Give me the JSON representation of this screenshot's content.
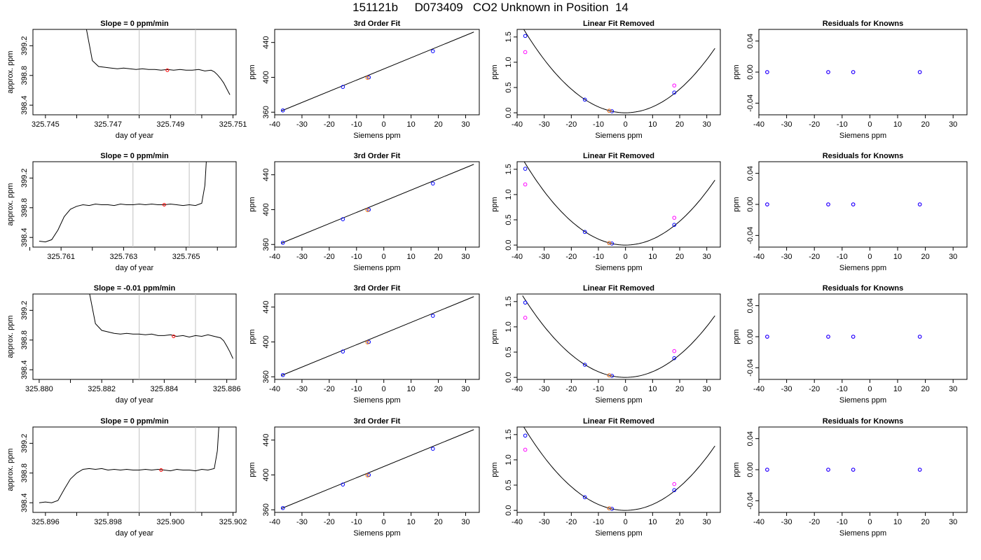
{
  "figure": {
    "title": "151121b     D073409   CO2 Unknown in Position  14"
  },
  "colors": {
    "axis": "#000000",
    "trace": "#000000",
    "fit_line": "#000000",
    "window_marker": "#c0c0c0",
    "mean_point": "#ff0000",
    "known_blue": "#0000ff",
    "known_magenta": "#ff00ff",
    "unknown_orange": "#ff7f00"
  },
  "chart_data": [
    {
      "type": "line",
      "panel": "trace",
      "title": "Slope =  0  ppm/min",
      "xlabel": "day of year",
      "ylabel": "approx. ppm",
      "xlim": [
        325.7446,
        325.7511
      ],
      "ylim": [
        398.27,
        399.42
      ],
      "xticks": [
        325.745,
        325.746,
        325.747,
        325.748,
        325.749,
        325.75,
        325.751
      ],
      "xtick_labels": [
        "325.745",
        "",
        "325.747",
        "",
        "325.749",
        "",
        "325.751"
      ],
      "yticks": [
        398.4,
        398.8,
        399.2
      ],
      "ytick_labels": [
        "398.4",
        "398.8",
        "399.2"
      ],
      "vlines": [
        325.748,
        325.7498
      ],
      "x": [
        325.7463,
        325.7465,
        325.7467,
        325.7469,
        325.7471,
        325.7473,
        325.7475,
        325.7477,
        325.7479,
        325.7481,
        325.7483,
        325.7485,
        325.7487,
        325.7489,
        325.7491,
        325.7493,
        325.7495,
        325.7497,
        325.7499,
        325.7501,
        325.7503,
        325.7504,
        325.7505,
        325.7506,
        325.7507,
        325.7508,
        325.7509
      ],
      "y": [
        399.45,
        399.0,
        398.92,
        398.91,
        398.9,
        398.89,
        398.9,
        398.89,
        398.88,
        398.89,
        398.88,
        398.88,
        398.87,
        398.88,
        398.87,
        398.88,
        398.87,
        398.87,
        398.88,
        398.86,
        398.87,
        398.85,
        398.81,
        398.76,
        398.7,
        398.62,
        398.54
      ],
      "mean": {
        "x": 325.7489,
        "y": 398.87
      }
    },
    {
      "type": "scatter",
      "panel": "fit",
      "title": "3rd Order Fit",
      "xlabel": "Siemens ppm",
      "ylabel": "ppm",
      "xlim": [
        -40,
        35
      ],
      "ylim": [
        357,
        455
      ],
      "xticks": [
        -40,
        -30,
        -20,
        -10,
        0,
        10,
        20,
        30
      ],
      "yticks": [
        360,
        400,
        440
      ],
      "line": [
        [
          -37.5,
          361.5
        ],
        [
          33,
          452
        ]
      ],
      "points_blue": [
        [
          -37,
          362
        ],
        [
          -15,
          389
        ],
        [
          -5.5,
          400
        ],
        [
          18,
          430
        ]
      ],
      "points_orange": [
        [
          -6,
          399.5
        ]
      ]
    },
    {
      "type": "scatter",
      "panel": "resid_curve",
      "title": "Linear Fit Removed",
      "xlabel": "Siemens ppm",
      "ylabel": "ppm",
      "xlim": [
        -40,
        35
      ],
      "ylim": [
        -0.04,
        1.65
      ],
      "xticks": [
        -40,
        -30,
        -20,
        -10,
        0,
        10,
        20,
        30
      ],
      "yticks": [
        0.0,
        0.5,
        1.0,
        1.5
      ],
      "ytick_labels": [
        "0.0",
        "0.5",
        "1.0",
        "1.5"
      ],
      "curve_a": 0.00117,
      "points_blue": [
        [
          -37,
          1.52
        ],
        [
          -15,
          0.26
        ],
        [
          -6,
          0.04
        ],
        [
          -5,
          0.03
        ],
        [
          18,
          0.4
        ]
      ],
      "points_magenta": [
        [
          -37,
          1.2
        ],
        [
          18,
          0.54
        ]
      ],
      "points_orange": [
        [
          -6,
          0.04
        ]
      ]
    },
    {
      "type": "scatter",
      "panel": "knowns",
      "title": "Residuals for Knowns",
      "xlabel": "Siemens ppm",
      "ylabel": "ppm",
      "xlim": [
        -40,
        35
      ],
      "ylim": [
        -0.055,
        0.055
      ],
      "xticks": [
        -40,
        -30,
        -20,
        -10,
        0,
        10,
        20,
        30
      ],
      "yticks": [
        -0.04,
        0.0,
        0.04
      ],
      "ytick_labels": [
        "-0.04",
        "0.00",
        "0.04"
      ],
      "points_blue": [
        [
          -37,
          0
        ],
        [
          -15,
          0
        ],
        [
          -6,
          0
        ],
        [
          18,
          0
        ]
      ],
      "points_magenta": [
        [
          -37,
          0
        ],
        [
          -15,
          0
        ],
        [
          -6,
          0
        ],
        [
          18,
          0
        ]
      ]
    },
    {
      "type": "line",
      "panel": "trace",
      "title": "Slope =  0  ppm/min",
      "xlabel": "day of year",
      "ylabel": "approx. ppm",
      "xlim": [
        325.7601,
        325.7666
      ],
      "ylim": [
        398.27,
        399.42
      ],
      "xticks": [
        325.76,
        325.761,
        325.762,
        325.763,
        325.764,
        325.765,
        325.766
      ],
      "xtick_labels": [
        "",
        "325.761",
        "",
        "325.763",
        "",
        "325.765",
        ""
      ],
      "yticks": [
        398.4,
        398.8,
        399.2
      ],
      "ytick_labels": [
        "398.4",
        "398.8",
        "399.2"
      ],
      "vlines": [
        325.7633,
        325.7651
      ],
      "x": [
        325.7603,
        325.7605,
        325.7607,
        325.7609,
        325.7611,
        325.7613,
        325.7615,
        325.7617,
        325.7619,
        325.7621,
        325.7623,
        325.7625,
        325.7627,
        325.7629,
        325.7631,
        325.7633,
        325.7635,
        325.7637,
        325.7639,
        325.7641,
        325.7643,
        325.7645,
        325.7647,
        325.7649,
        325.7651,
        325.7653,
        325.7655,
        325.7656,
        325.76565
      ],
      "y": [
        398.35,
        398.34,
        398.37,
        398.5,
        398.68,
        398.78,
        398.82,
        398.84,
        398.83,
        398.85,
        398.84,
        398.84,
        398.83,
        398.85,
        398.84,
        398.84,
        398.85,
        398.84,
        398.85,
        398.84,
        398.84,
        398.85,
        398.84,
        398.83,
        398.84,
        398.83,
        398.86,
        399.1,
        399.45
      ],
      "mean": {
        "x": 325.7643,
        "y": 398.84
      }
    },
    {
      "type": "scatter",
      "panel": "fit",
      "title": "3rd Order Fit",
      "xlabel": "Siemens ppm",
      "ylabel": "ppm",
      "xlim": [
        -40,
        35
      ],
      "ylim": [
        357,
        455
      ],
      "xticks": [
        -40,
        -30,
        -20,
        -10,
        0,
        10,
        20,
        30
      ],
      "yticks": [
        360,
        400,
        440
      ],
      "line": [
        [
          -37.5,
          361.5
        ],
        [
          33,
          452
        ]
      ],
      "points_blue": [
        [
          -37,
          362
        ],
        [
          -15,
          389
        ],
        [
          -5.5,
          400
        ],
        [
          18,
          430
        ]
      ],
      "points_orange": [
        [
          -6,
          399.5
        ]
      ]
    },
    {
      "type": "scatter",
      "panel": "resid_curve",
      "title": "Linear Fit Removed",
      "xlabel": "Siemens ppm",
      "ylabel": "ppm",
      "xlim": [
        -40,
        35
      ],
      "ylim": [
        -0.04,
        1.65
      ],
      "xticks": [
        -40,
        -30,
        -20,
        -10,
        0,
        10,
        20,
        30
      ],
      "yticks": [
        0.0,
        0.5,
        1.0,
        1.5
      ],
      "ytick_labels": [
        "0.0",
        "0.5",
        "1.0",
        "1.5"
      ],
      "curve_a": 0.00118,
      "points_blue": [
        [
          -37,
          1.51
        ],
        [
          -15,
          0.26
        ],
        [
          -6,
          0.04
        ],
        [
          -5,
          0.03
        ],
        [
          18,
          0.4
        ]
      ],
      "points_magenta": [
        [
          -37,
          1.2
        ],
        [
          18,
          0.54
        ]
      ],
      "points_orange": [
        [
          -6,
          0.04
        ]
      ]
    },
    {
      "type": "scatter",
      "panel": "knowns",
      "title": "Residuals for Knowns",
      "xlabel": "Siemens ppm",
      "ylabel": "ppm",
      "xlim": [
        -40,
        35
      ],
      "ylim": [
        -0.055,
        0.055
      ],
      "xticks": [
        -40,
        -30,
        -20,
        -10,
        0,
        10,
        20,
        30
      ],
      "yticks": [
        -0.04,
        0.0,
        0.04
      ],
      "ytick_labels": [
        "-0.04",
        "0.00",
        "0.04"
      ],
      "points_blue": [
        [
          -37,
          0
        ],
        [
          -15,
          0
        ],
        [
          -6,
          0
        ],
        [
          18,
          0
        ]
      ],
      "points_magenta": [
        [
          -37,
          0
        ],
        [
          -15,
          0
        ],
        [
          -6,
          0
        ],
        [
          18,
          0
        ]
      ]
    },
    {
      "type": "line",
      "panel": "trace",
      "title": "Slope =  -0.01  ppm/min",
      "xlabel": "day of year",
      "ylabel": "approx. ppm",
      "xlim": [
        325.8798,
        325.8863
      ],
      "ylim": [
        398.27,
        399.42
      ],
      "xticks": [
        325.88,
        325.881,
        325.882,
        325.883,
        325.884,
        325.885,
        325.886
      ],
      "xtick_labels": [
        "325.880",
        "",
        "325.882",
        "",
        "325.884",
        "",
        "325.886"
      ],
      "yticks": [
        398.4,
        398.8,
        399.2
      ],
      "ytick_labels": [
        "398.4",
        "398.8",
        "399.2"
      ],
      "vlines": [
        325.8832,
        325.885
      ],
      "x": [
        325.8816,
        325.8818,
        325.882,
        325.8822,
        325.8824,
        325.8826,
        325.8828,
        325.883,
        325.8832,
        325.8834,
        325.8836,
        325.8838,
        325.884,
        325.8842,
        325.8844,
        325.8846,
        325.8848,
        325.885,
        325.8852,
        325.8854,
        325.8856,
        325.8858,
        325.8859,
        325.886,
        325.8861,
        325.8862
      ],
      "y": [
        399.45,
        399.02,
        398.93,
        398.91,
        398.89,
        398.88,
        398.89,
        398.88,
        398.88,
        398.87,
        398.88,
        398.86,
        398.86,
        398.87,
        398.85,
        398.86,
        398.84,
        398.86,
        398.85,
        398.87,
        398.85,
        398.83,
        398.79,
        398.72,
        398.64,
        398.55
      ],
      "mean": {
        "x": 325.8843,
        "y": 398.85
      }
    },
    {
      "type": "scatter",
      "panel": "fit",
      "title": "3rd Order Fit",
      "xlabel": "Siemens ppm",
      "ylabel": "ppm",
      "xlim": [
        -40,
        35
      ],
      "ylim": [
        357,
        455
      ],
      "xticks": [
        -40,
        -30,
        -20,
        -10,
        0,
        10,
        20,
        30
      ],
      "yticks": [
        360,
        400,
        440
      ],
      "line": [
        [
          -37.5,
          361.5
        ],
        [
          33,
          452
        ]
      ],
      "points_blue": [
        [
          -37,
          362
        ],
        [
          -15,
          389
        ],
        [
          -5.5,
          400
        ],
        [
          18,
          430
        ]
      ],
      "points_orange": [
        [
          -6,
          399.5
        ]
      ]
    },
    {
      "type": "scatter",
      "panel": "resid_curve",
      "title": "Linear Fit Removed",
      "xlabel": "Siemens ppm",
      "ylabel": "ppm",
      "xlim": [
        -40,
        35
      ],
      "ylim": [
        -0.04,
        1.65
      ],
      "xticks": [
        -40,
        -30,
        -20,
        -10,
        0,
        10,
        20,
        30
      ],
      "yticks": [
        0.0,
        0.5,
        1.0,
        1.5
      ],
      "ytick_labels": [
        "0.0",
        "0.5",
        "1.0",
        "1.5"
      ],
      "curve_a": 0.00112,
      "points_blue": [
        [
          -37,
          1.48
        ],
        [
          -15,
          0.25
        ],
        [
          -6,
          0.04
        ],
        [
          -5,
          0.03
        ],
        [
          18,
          0.38
        ]
      ],
      "points_magenta": [
        [
          -37,
          1.18
        ],
        [
          18,
          0.52
        ]
      ],
      "points_orange": [
        [
          -6,
          0.04
        ]
      ]
    },
    {
      "type": "scatter",
      "panel": "knowns",
      "title": "Residuals for Knowns",
      "xlabel": "Siemens ppm",
      "ylabel": "ppm",
      "xlim": [
        -40,
        35
      ],
      "ylim": [
        -0.055,
        0.055
      ],
      "xticks": [
        -40,
        -30,
        -20,
        -10,
        0,
        10,
        20,
        30
      ],
      "yticks": [
        -0.04,
        0.0,
        0.04
      ],
      "ytick_labels": [
        "-0.04",
        "0.00",
        "0.04"
      ],
      "points_blue": [
        [
          -37,
          0
        ],
        [
          -15,
          0
        ],
        [
          -6,
          0
        ],
        [
          18,
          0
        ]
      ],
      "points_magenta": [
        [
          -37,
          0
        ],
        [
          -15,
          0
        ],
        [
          -6,
          0
        ],
        [
          18,
          0
        ]
      ]
    },
    {
      "type": "line",
      "panel": "trace",
      "title": "Slope =  0  ppm/min",
      "xlabel": "day of year",
      "ylabel": "approx. ppm",
      "xlim": [
        325.8956,
        325.9021
      ],
      "ylim": [
        398.27,
        399.42
      ],
      "xticks": [
        325.896,
        325.897,
        325.898,
        325.899,
        325.9,
        325.901,
        325.902
      ],
      "xtick_labels": [
        "325.896",
        "",
        "325.898",
        "",
        "325.900",
        "",
        "325.902"
      ],
      "yticks": [
        398.4,
        398.8,
        399.2
      ],
      "ytick_labels": [
        "398.4",
        "398.8",
        "399.2"
      ],
      "vlines": [
        325.899,
        325.9008
      ],
      "x": [
        325.8958,
        325.896,
        325.8962,
        325.8964,
        325.8966,
        325.8968,
        325.897,
        325.8972,
        325.8974,
        325.8976,
        325.8978,
        325.898,
        325.8982,
        325.8984,
        325.8986,
        325.8988,
        325.899,
        325.8992,
        325.8994,
        325.8996,
        325.8998,
        325.9,
        325.9002,
        325.9004,
        325.9006,
        325.9008,
        325.901,
        325.9012,
        325.9014,
        325.9015,
        325.90155
      ],
      "y": [
        398.4,
        398.41,
        398.4,
        398.43,
        398.58,
        398.72,
        398.8,
        398.85,
        398.86,
        398.85,
        398.86,
        398.84,
        398.85,
        398.84,
        398.85,
        398.84,
        398.84,
        398.85,
        398.84,
        398.85,
        398.84,
        398.83,
        398.85,
        398.84,
        398.84,
        398.83,
        398.85,
        398.84,
        398.86,
        399.1,
        399.45
      ],
      "mean": {
        "x": 325.8997,
        "y": 398.84
      }
    },
    {
      "type": "scatter",
      "panel": "fit",
      "title": "3rd Order Fit",
      "xlabel": "Siemens ppm",
      "ylabel": "ppm",
      "xlim": [
        -40,
        35
      ],
      "ylim": [
        357,
        455
      ],
      "xticks": [
        -40,
        -30,
        -20,
        -10,
        0,
        10,
        20,
        30
      ],
      "yticks": [
        360,
        400,
        440
      ],
      "line": [
        [
          -37.5,
          361.5
        ],
        [
          33,
          452
        ]
      ],
      "points_blue": [
        [
          -37,
          362
        ],
        [
          -15,
          389
        ],
        [
          -5.5,
          400
        ],
        [
          18,
          430
        ]
      ],
      "points_orange": [
        [
          -6,
          399.5
        ]
      ]
    },
    {
      "type": "scatter",
      "panel": "resid_curve",
      "title": "Linear Fit Removed",
      "xlabel": "Siemens ppm",
      "ylabel": "ppm",
      "xlim": [
        -40,
        35
      ],
      "ylim": [
        -0.04,
        1.65
      ],
      "xticks": [
        -40,
        -30,
        -20,
        -10,
        0,
        10,
        20,
        30
      ],
      "yticks": [
        0.0,
        0.5,
        1.0,
        1.5
      ],
      "ytick_labels": [
        "0.0",
        "0.5",
        "1.0",
        "1.5"
      ],
      "curve_a": 0.00117,
      "points_blue": [
        [
          -37,
          1.48
        ],
        [
          -15,
          0.26
        ],
        [
          -6,
          0.04
        ],
        [
          -5,
          0.03
        ],
        [
          18,
          0.4
        ]
      ],
      "points_magenta": [
        [
          -37,
          1.2
        ],
        [
          18,
          0.52
        ]
      ],
      "points_orange": [
        [
          -6,
          0.04
        ]
      ]
    },
    {
      "type": "scatter",
      "panel": "knowns",
      "title": "Residuals for Knowns",
      "xlabel": "Siemens ppm",
      "ylabel": "ppm",
      "xlim": [
        -40,
        35
      ],
      "ylim": [
        -0.055,
        0.055
      ],
      "xticks": [
        -40,
        -30,
        -20,
        -10,
        0,
        10,
        20,
        30
      ],
      "yticks": [
        -0.04,
        0.0,
        0.04
      ],
      "ytick_labels": [
        "-0.04",
        "0.00",
        "0.04"
      ],
      "points_blue": [
        [
          -37,
          0
        ],
        [
          -15,
          0
        ],
        [
          -6,
          0
        ],
        [
          18,
          0
        ]
      ],
      "points_magenta": [
        [
          -37,
          0
        ],
        [
          -15,
          0
        ],
        [
          -6,
          0
        ],
        [
          18,
          0
        ]
      ]
    }
  ]
}
